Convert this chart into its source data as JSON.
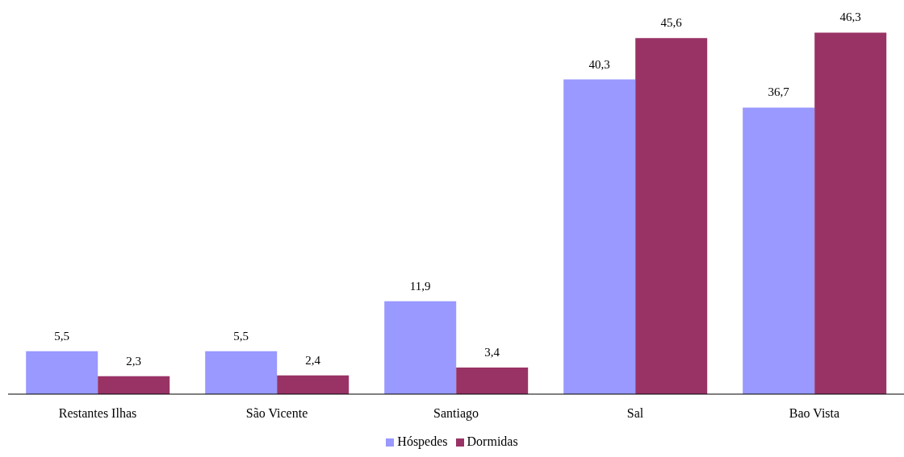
{
  "chart_data": {
    "type": "bar",
    "categories": [
      "Restantes Ilhas",
      "São Vicente",
      "Santiago",
      "Sal",
      "Bao Vista"
    ],
    "series": [
      {
        "name": "Hóspedes",
        "color": "#9999ff",
        "values": [
          5.5,
          5.5,
          11.9,
          40.3,
          36.7
        ],
        "value_labels": [
          "5,5",
          "5,5",
          "11,9",
          "40,3",
          "36,7"
        ]
      },
      {
        "name": "Dormidas",
        "color": "#993366",
        "values": [
          2.3,
          2.4,
          3.4,
          45.6,
          46.3
        ],
        "value_labels": [
          "2,3",
          "2,4",
          "3,4",
          "45,6",
          "46,3"
        ]
      }
    ],
    "legend": "bottom"
  }
}
